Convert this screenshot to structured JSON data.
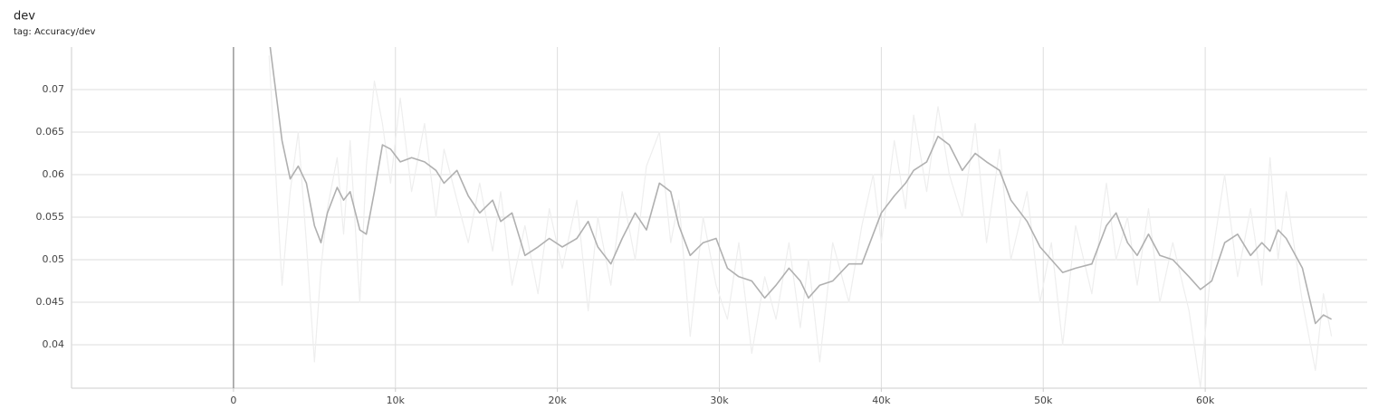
{
  "chart_data": {
    "type": "line",
    "title": "dev",
    "subtitle": "tag: Accuracy/dev",
    "x": [
      2200,
      3000,
      3500,
      4000,
      4500,
      5000,
      5400,
      5800,
      6400,
      6800,
      7200,
      7800,
      8200,
      8700,
      9200,
      9700,
      10300,
      11000,
      11800,
      12500,
      13000,
      13800,
      14500,
      15200,
      16000,
      16500,
      17200,
      18000,
      18800,
      19500,
      20300,
      21200,
      21900,
      22500,
      23300,
      24000,
      24800,
      25500,
      26300,
      27000,
      27500,
      28200,
      29000,
      29800,
      30500,
      31200,
      32000,
      32800,
      33500,
      34300,
      35000,
      35500,
      36200,
      37000,
      38000,
      38800,
      39500,
      40000,
      40800,
      41500,
      42000,
      42800,
      43500,
      44200,
      45000,
      45800,
      46500,
      47300,
      48000,
      49000,
      49800,
      50500,
      51200,
      52000,
      53000,
      53900,
      54500,
      55200,
      55800,
      56500,
      57200,
      58000,
      59000,
      59700,
      60400,
      61200,
      62000,
      62800,
      63500,
      64000,
      64500,
      65000,
      66000,
      66800,
      67300,
      67800
    ],
    "series": [
      {
        "color": "#eeeeee",
        "values": [
          0.074,
          0.047,
          0.058,
          0.065,
          0.052,
          0.038,
          0.049,
          0.056,
          0.062,
          0.053,
          0.064,
          0.045,
          0.061,
          0.071,
          0.066,
          0.059,
          0.069,
          0.058,
          0.066,
          0.055,
          0.063,
          0.057,
          0.052,
          0.059,
          0.051,
          0.058,
          0.047,
          0.054,
          0.046,
          0.056,
          0.049,
          0.057,
          0.044,
          0.055,
          0.047,
          0.058,
          0.05,
          0.061,
          0.065,
          0.052,
          0.057,
          0.041,
          0.055,
          0.047,
          0.043,
          0.052,
          0.039,
          0.048,
          0.043,
          0.052,
          0.042,
          0.05,
          0.038,
          0.052,
          0.045,
          0.054,
          0.06,
          0.052,
          0.064,
          0.056,
          0.067,
          0.058,
          0.068,
          0.06,
          0.055,
          0.066,
          0.052,
          0.063,
          0.05,
          0.058,
          0.045,
          0.052,
          0.04,
          0.054,
          0.046,
          0.059,
          0.05,
          0.055,
          0.047,
          0.056,
          0.045,
          0.052,
          0.044,
          0.035,
          0.05,
          0.06,
          0.048,
          0.056,
          0.047,
          0.062,
          0.05,
          0.058,
          0.045,
          0.037,
          0.046,
          0.041
        ]
      },
      {
        "color": "#b0b0b0",
        "values": [
          0.076,
          0.064,
          0.0595,
          0.061,
          0.059,
          0.054,
          0.052,
          0.0555,
          0.0585,
          0.057,
          0.058,
          0.0535,
          0.053,
          0.058,
          0.0635,
          0.063,
          0.0615,
          0.062,
          0.0615,
          0.0605,
          0.059,
          0.0605,
          0.0575,
          0.0555,
          0.057,
          0.0545,
          0.0555,
          0.0505,
          0.0515,
          0.0525,
          0.0515,
          0.0525,
          0.0545,
          0.0515,
          0.0495,
          0.0525,
          0.0555,
          0.0535,
          0.059,
          0.058,
          0.054,
          0.0505,
          0.052,
          0.0525,
          0.049,
          0.048,
          0.0475,
          0.0455,
          0.047,
          0.049,
          0.0475,
          0.0455,
          0.047,
          0.0475,
          0.0495,
          0.0495,
          0.053,
          0.0555,
          0.0575,
          0.059,
          0.0605,
          0.0615,
          0.0645,
          0.0635,
          0.0605,
          0.0625,
          0.0615,
          0.0605,
          0.057,
          0.0545,
          0.0515,
          0.05,
          0.0485,
          0.049,
          0.0495,
          0.054,
          0.0555,
          0.052,
          0.0505,
          0.053,
          0.0505,
          0.05,
          0.048,
          0.0465,
          0.0475,
          0.052,
          0.053,
          0.0505,
          0.052,
          0.051,
          0.0535,
          0.0525,
          0.049,
          0.0425,
          0.0435,
          0.043
        ]
      }
    ],
    "xlim": [
      -10000,
      70000
    ],
    "xticks": [
      0,
      {
        "value": 10000,
        "label": "10k"
      },
      {
        "value": 20000,
        "label": "20k"
      },
      {
        "value": 30000,
        "label": "30k"
      },
      {
        "value": 40000,
        "label": "40k"
      },
      {
        "value": 50000,
        "label": "50k"
      },
      {
        "value": 60000,
        "label": "60k"
      }
    ],
    "ylim": [
      0.0349,
      0.075
    ],
    "yticks": [
      0.04,
      0.045,
      0.05,
      0.055,
      0.06,
      0.065,
      0.07
    ],
    "grid": true
  }
}
